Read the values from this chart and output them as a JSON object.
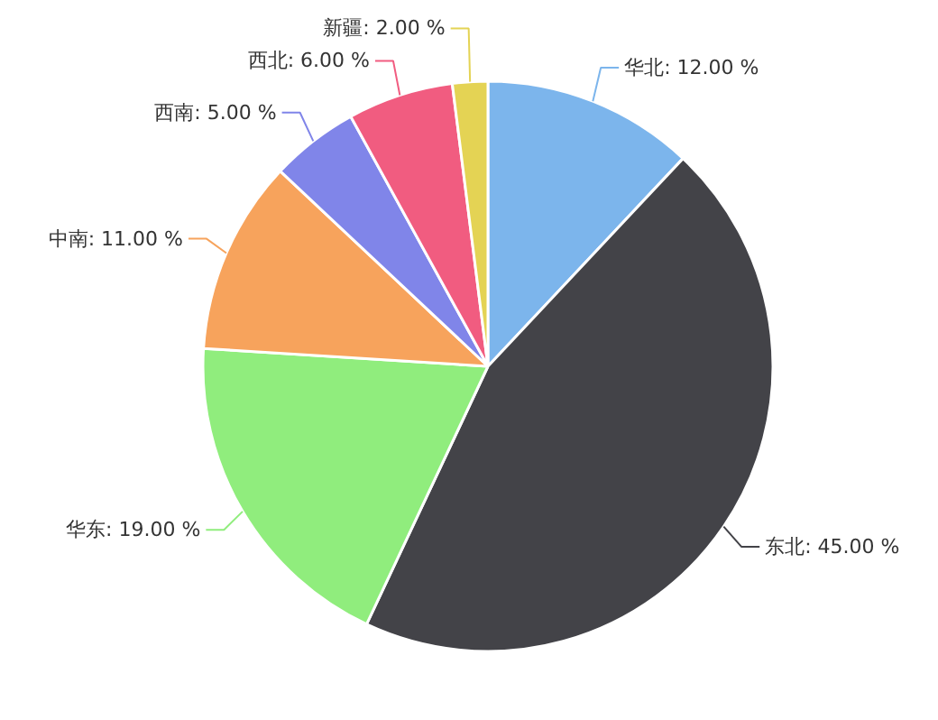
{
  "chart_data": {
    "type": "pie",
    "categories": [
      "华北",
      "东北",
      "华东",
      "中南",
      "西南",
      "西北",
      "新疆"
    ],
    "values": [
      12,
      45,
      19,
      11,
      5,
      6,
      2
    ],
    "value_labels": [
      "12.00 %",
      "45.00 %",
      "19.00 %",
      "11.00 %",
      "5.00 %",
      "6.00 %",
      "2.00 %"
    ],
    "colors": [
      "#7cb5ec",
      "#434348",
      "#90ed7d",
      "#f7a35c",
      "#8085e9",
      "#f15c80",
      "#e4d354"
    ]
  }
}
